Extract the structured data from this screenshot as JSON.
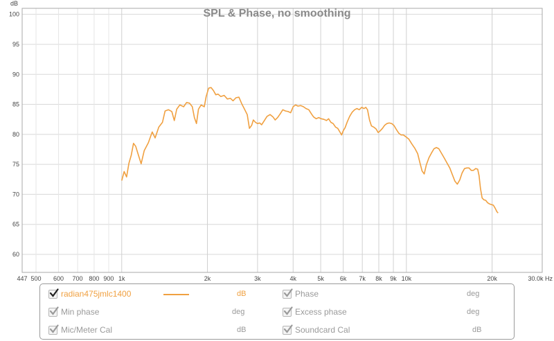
{
  "chart_data": {
    "type": "line",
    "title": "SPL & Phase, no smoothing",
    "xlabel": "Hz",
    "ylabel": "dB",
    "xscale": "log",
    "xlim": [
      447,
      30000
    ],
    "ylim": [
      57,
      101
    ],
    "grid": true,
    "x_tick_labels": [
      {
        "v": 447,
        "t": "447"
      },
      {
        "v": 500,
        "t": "500"
      },
      {
        "v": 600,
        "t": "600"
      },
      {
        "v": 700,
        "t": "700"
      },
      {
        "v": 800,
        "t": "800"
      },
      {
        "v": 900,
        "t": "900"
      },
      {
        "v": 1000,
        "t": "1k"
      },
      {
        "v": 2000,
        "t": "2k"
      },
      {
        "v": 3000,
        "t": "3k"
      },
      {
        "v": 4000,
        "t": "4k"
      },
      {
        "v": 5000,
        "t": "5k"
      },
      {
        "v": 6000,
        "t": "6k"
      },
      {
        "v": 7000,
        "t": "7k"
      },
      {
        "v": 8000,
        "t": "8k"
      },
      {
        "v": 9000,
        "t": "9k"
      },
      {
        "v": 10000,
        "t": "10k"
      },
      {
        "v": 20000,
        "t": "20k"
      },
      {
        "v": 30000,
        "t": "30.0k Hz"
      }
    ],
    "x_grid_major": [
      1000,
      2000,
      3000,
      4000,
      5000,
      6000,
      7000,
      8000,
      9000,
      10000,
      20000
    ],
    "x_grid_minor": [
      500,
      600,
      700,
      800,
      900,
      20000
    ],
    "y_ticks": [
      60,
      65,
      70,
      75,
      80,
      85,
      90,
      95,
      100
    ],
    "series": [
      {
        "name": "radian475jmlc1400",
        "color": "#f0a040",
        "points": [
          [
            1000,
            72.3
          ],
          [
            1020,
            73.8
          ],
          [
            1040,
            72.9
          ],
          [
            1060,
            75.2
          ],
          [
            1080,
            76.5
          ],
          [
            1100,
            78.5
          ],
          [
            1120,
            78.0
          ],
          [
            1140,
            76.8
          ],
          [
            1170,
            75.1
          ],
          [
            1200,
            77.3
          ],
          [
            1240,
            78.6
          ],
          [
            1280,
            80.4
          ],
          [
            1310,
            79.4
          ],
          [
            1350,
            81.2
          ],
          [
            1390,
            82.0
          ],
          [
            1420,
            83.9
          ],
          [
            1460,
            84.1
          ],
          [
            1500,
            83.8
          ],
          [
            1530,
            82.3
          ],
          [
            1560,
            84.2
          ],
          [
            1600,
            84.9
          ],
          [
            1650,
            84.6
          ],
          [
            1690,
            85.3
          ],
          [
            1730,
            85.2
          ],
          [
            1770,
            84.6
          ],
          [
            1800,
            82.8
          ],
          [
            1830,
            81.8
          ],
          [
            1860,
            84.2
          ],
          [
            1900,
            84.9
          ],
          [
            1950,
            84.6
          ],
          [
            1980,
            86.3
          ],
          [
            2020,
            87.7
          ],
          [
            2060,
            87.8
          ],
          [
            2100,
            87.3
          ],
          [
            2140,
            86.6
          ],
          [
            2180,
            86.7
          ],
          [
            2230,
            86.3
          ],
          [
            2290,
            86.5
          ],
          [
            2350,
            85.9
          ],
          [
            2410,
            86.0
          ],
          [
            2460,
            85.6
          ],
          [
            2520,
            86.1
          ],
          [
            2580,
            86.2
          ],
          [
            2640,
            85.1
          ],
          [
            2700,
            84.2
          ],
          [
            2760,
            83.3
          ],
          [
            2810,
            81.0
          ],
          [
            2860,
            81.5
          ],
          [
            2900,
            82.4
          ],
          [
            2950,
            82.0
          ],
          [
            3000,
            81.8
          ],
          [
            3050,
            81.9
          ],
          [
            3100,
            81.6
          ],
          [
            3160,
            82.2
          ],
          [
            3240,
            83.0
          ],
          [
            3320,
            83.3
          ],
          [
            3400,
            82.9
          ],
          [
            3460,
            82.4
          ],
          [
            3530,
            82.8
          ],
          [
            3600,
            83.4
          ],
          [
            3680,
            84.1
          ],
          [
            3760,
            83.9
          ],
          [
            3840,
            83.8
          ],
          [
            3920,
            83.6
          ],
          [
            4000,
            84.6
          ],
          [
            4080,
            84.9
          ],
          [
            4160,
            84.7
          ],
          [
            4250,
            84.8
          ],
          [
            4350,
            84.6
          ],
          [
            4440,
            84.3
          ],
          [
            4540,
            84.1
          ],
          [
            4640,
            83.4
          ],
          [
            4720,
            82.9
          ],
          [
            4820,
            82.6
          ],
          [
            4920,
            82.8
          ],
          [
            5020,
            82.6
          ],
          [
            5130,
            82.5
          ],
          [
            5240,
            82.3
          ],
          [
            5330,
            82.6
          ],
          [
            5430,
            82.0
          ],
          [
            5530,
            81.8
          ],
          [
            5640,
            81.2
          ],
          [
            5740,
            81.0
          ],
          [
            5840,
            80.4
          ],
          [
            5920,
            79.9
          ],
          [
            6000,
            80.6
          ],
          [
            6090,
            81.1
          ],
          [
            6200,
            82.1
          ],
          [
            6320,
            83.0
          ],
          [
            6450,
            83.7
          ],
          [
            6580,
            84.1
          ],
          [
            6700,
            84.3
          ],
          [
            6830,
            84.1
          ],
          [
            6960,
            84.5
          ],
          [
            7100,
            84.3
          ],
          [
            7200,
            84.5
          ],
          [
            7300,
            84.1
          ],
          [
            7420,
            82.4
          ],
          [
            7540,
            81.4
          ],
          [
            7680,
            81.2
          ],
          [
            7820,
            80.9
          ],
          [
            7960,
            80.3
          ],
          [
            8100,
            80.6
          ],
          [
            8240,
            81.0
          ],
          [
            8380,
            81.5
          ],
          [
            8540,
            81.8
          ],
          [
            8700,
            81.9
          ],
          [
            8880,
            81.8
          ],
          [
            9040,
            81.5
          ],
          [
            9220,
            80.8
          ],
          [
            9400,
            80.2
          ],
          [
            9580,
            79.9
          ],
          [
            9760,
            79.9
          ],
          [
            9950,
            79.6
          ],
          [
            10200,
            79.2
          ],
          [
            10450,
            78.4
          ],
          [
            10700,
            77.7
          ],
          [
            10950,
            76.8
          ],
          [
            11150,
            75.3
          ],
          [
            11350,
            73.9
          ],
          [
            11550,
            73.4
          ],
          [
            11750,
            74.9
          ],
          [
            12000,
            76.1
          ],
          [
            12250,
            76.9
          ],
          [
            12500,
            77.6
          ],
          [
            12750,
            77.8
          ],
          [
            13000,
            77.6
          ],
          [
            13300,
            76.8
          ],
          [
            13600,
            76.0
          ],
          [
            13900,
            75.2
          ],
          [
            14200,
            74.4
          ],
          [
            14500,
            73.3
          ],
          [
            14800,
            72.2
          ],
          [
            15100,
            71.7
          ],
          [
            15400,
            72.4
          ],
          [
            15700,
            73.6
          ],
          [
            16000,
            74.3
          ],
          [
            16300,
            74.4
          ],
          [
            16600,
            74.4
          ],
          [
            16900,
            74.0
          ],
          [
            17200,
            74.0
          ],
          [
            17500,
            74.3
          ],
          [
            17800,
            74.2
          ],
          [
            18000,
            73.1
          ],
          [
            18200,
            71.0
          ],
          [
            18450,
            69.4
          ],
          [
            18700,
            69.1
          ],
          [
            19000,
            69.0
          ],
          [
            19300,
            68.6
          ],
          [
            19600,
            68.4
          ],
          [
            19900,
            68.3
          ],
          [
            20200,
            68.2
          ],
          [
            20500,
            67.7
          ],
          [
            20800,
            67.1
          ],
          [
            21000,
            66.9
          ]
        ]
      }
    ]
  },
  "legend": {
    "items": [
      {
        "label": "radian475jmlc1400",
        "unit": "dB",
        "checked": true,
        "active": true,
        "line_color": "#f0a040"
      },
      {
        "label": "Phase",
        "unit": "deg",
        "checked": true,
        "active": false
      },
      {
        "label": "Min phase",
        "unit": "deg",
        "checked": true,
        "active": false
      },
      {
        "label": "Excess phase",
        "unit": "deg",
        "checked": true,
        "active": false
      },
      {
        "label": "Mic/Meter Cal",
        "unit": "dB",
        "checked": true,
        "active": false
      },
      {
        "label": "Soundcard Cal",
        "unit": "dB",
        "checked": true,
        "active": false
      }
    ]
  },
  "colors": {
    "accent": "#f0a040",
    "grid": "#d8d8d8",
    "frame": "#a8a8a8",
    "muted_text": "#9a9a9a"
  }
}
